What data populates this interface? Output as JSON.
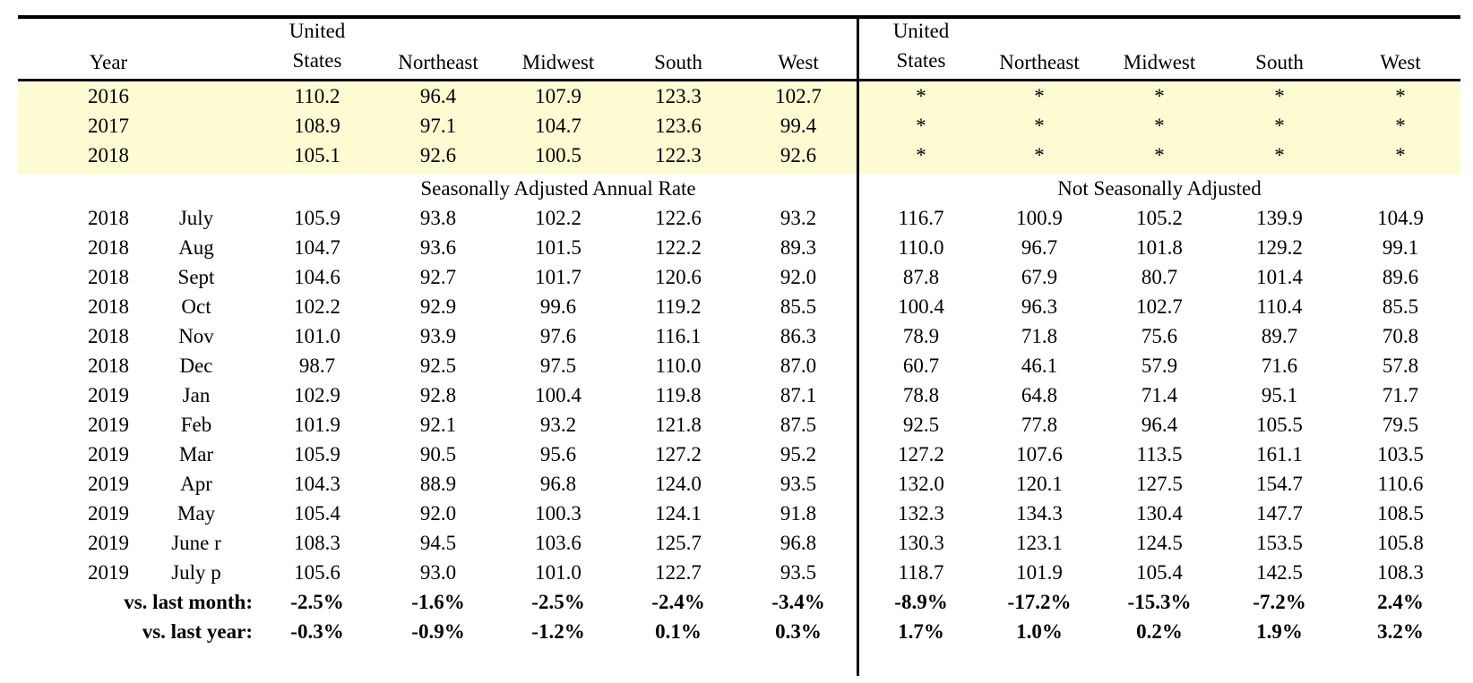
{
  "header": [
    "Year",
    "United States",
    "Northeast",
    "Midwest",
    "South",
    "West",
    "United States",
    "Northeast",
    "Midwest",
    "South",
    "West"
  ],
  "annual_rows": [
    {
      "year": "2016",
      "values": [
        "110.2",
        "96.4",
        "107.9",
        "123.3",
        "102.7",
        "*",
        "*",
        "*",
        "*",
        "*"
      ]
    },
    {
      "year": "2017",
      "values": [
        "108.9",
        "97.1",
        "104.7",
        "123.6",
        "99.4",
        "*",
        "*",
        "*",
        "*",
        "*"
      ]
    },
    {
      "year": "2018",
      "values": [
        "105.1",
        "92.6",
        "100.5",
        "122.3",
        "92.6",
        "*",
        "*",
        "*",
        "*",
        "*"
      ]
    }
  ],
  "section_labels": [
    "Seasonally Adjusted Annual Rate",
    "Not Seasonally Adjusted"
  ],
  "monthly_rows": [
    {
      "year": "2018",
      "month": "July",
      "values": [
        "105.9",
        "93.8",
        "102.2",
        "122.6",
        "93.2",
        "116.7",
        "100.9",
        "105.2",
        "139.9",
        "104.9"
      ]
    },
    {
      "year": "2018",
      "month": "Aug",
      "values": [
        "104.7",
        "93.6",
        "101.5",
        "122.2",
        "89.3",
        "110.0",
        "96.7",
        "101.8",
        "129.2",
        "99.1"
      ]
    },
    {
      "year": "2018",
      "month": "Sept",
      "values": [
        "104.6",
        "92.7",
        "101.7",
        "120.6",
        "92.0",
        "87.8",
        "67.9",
        "80.7",
        "101.4",
        "89.6"
      ]
    },
    {
      "year": "2018",
      "month": "Oct",
      "values": [
        "102.2",
        "92.9",
        "99.6",
        "119.2",
        "85.5",
        "100.4",
        "96.3",
        "102.7",
        "110.4",
        "85.5"
      ]
    },
    {
      "year": "2018",
      "month": "Nov",
      "values": [
        "101.0",
        "93.9",
        "97.6",
        "116.1",
        "86.3",
        "78.9",
        "71.8",
        "75.6",
        "89.7",
        "70.8"
      ]
    },
    {
      "year": "2018",
      "month": "Dec",
      "values": [
        "98.7",
        "92.5",
        "97.5",
        "110.0",
        "87.0",
        "60.7",
        "46.1",
        "57.9",
        "71.6",
        "57.8"
      ]
    },
    {
      "year": "2019",
      "month": "Jan",
      "values": [
        "102.9",
        "92.8",
        "100.4",
        "119.8",
        "87.1",
        "78.8",
        "64.8",
        "71.4",
        "95.1",
        "71.7"
      ]
    },
    {
      "year": "2019",
      "month": "Feb",
      "values": [
        "101.9",
        "92.1",
        "93.2",
        "121.8",
        "87.5",
        "92.5",
        "77.8",
        "96.4",
        "105.5",
        "79.5"
      ]
    },
    {
      "year": "2019",
      "month": "Mar",
      "values": [
        "105.9",
        "90.5",
        "95.6",
        "127.2",
        "95.2",
        "127.2",
        "107.6",
        "113.5",
        "161.1",
        "103.5"
      ]
    },
    {
      "year": "2019",
      "month": "Apr",
      "values": [
        "104.3",
        "88.9",
        "96.8",
        "124.0",
        "93.5",
        "132.0",
        "120.1",
        "127.5",
        "154.7",
        "110.6"
      ]
    },
    {
      "year": "2019",
      "month": "May",
      "values": [
        "105.4",
        "92.0",
        "100.3",
        "124.1",
        "91.8",
        "132.3",
        "134.3",
        "130.4",
        "147.7",
        "108.5"
      ]
    },
    {
      "year": "2019",
      "month": "June r",
      "values": [
        "108.3",
        "94.5",
        "103.6",
        "125.7",
        "96.8",
        "130.3",
        "123.1",
        "124.5",
        "153.5",
        "105.8"
      ]
    },
    {
      "year": "2019",
      "month": "July p",
      "values": [
        "105.6",
        "93.0",
        "101.0",
        "122.7",
        "93.5",
        "118.7",
        "101.9",
        "105.4",
        "142.5",
        "108.3"
      ]
    }
  ],
  "summary_rows": [
    {
      "label": "vs. last month:",
      "values": [
        "-2.5%",
        "-1.6%",
        "-2.5%",
        "-2.4%",
        "-3.4%",
        "-8.9%",
        "-17.2%",
        "-15.3%",
        "-7.2%",
        "2.4%"
      ]
    },
    {
      "label": "vs. last year:",
      "values": [
        "-0.3%",
        "-0.9%",
        "-1.2%",
        "0.1%",
        "0.3%",
        "1.7%",
        "1.0%",
        "0.2%",
        "1.9%",
        "3.2%"
      ]
    }
  ]
}
